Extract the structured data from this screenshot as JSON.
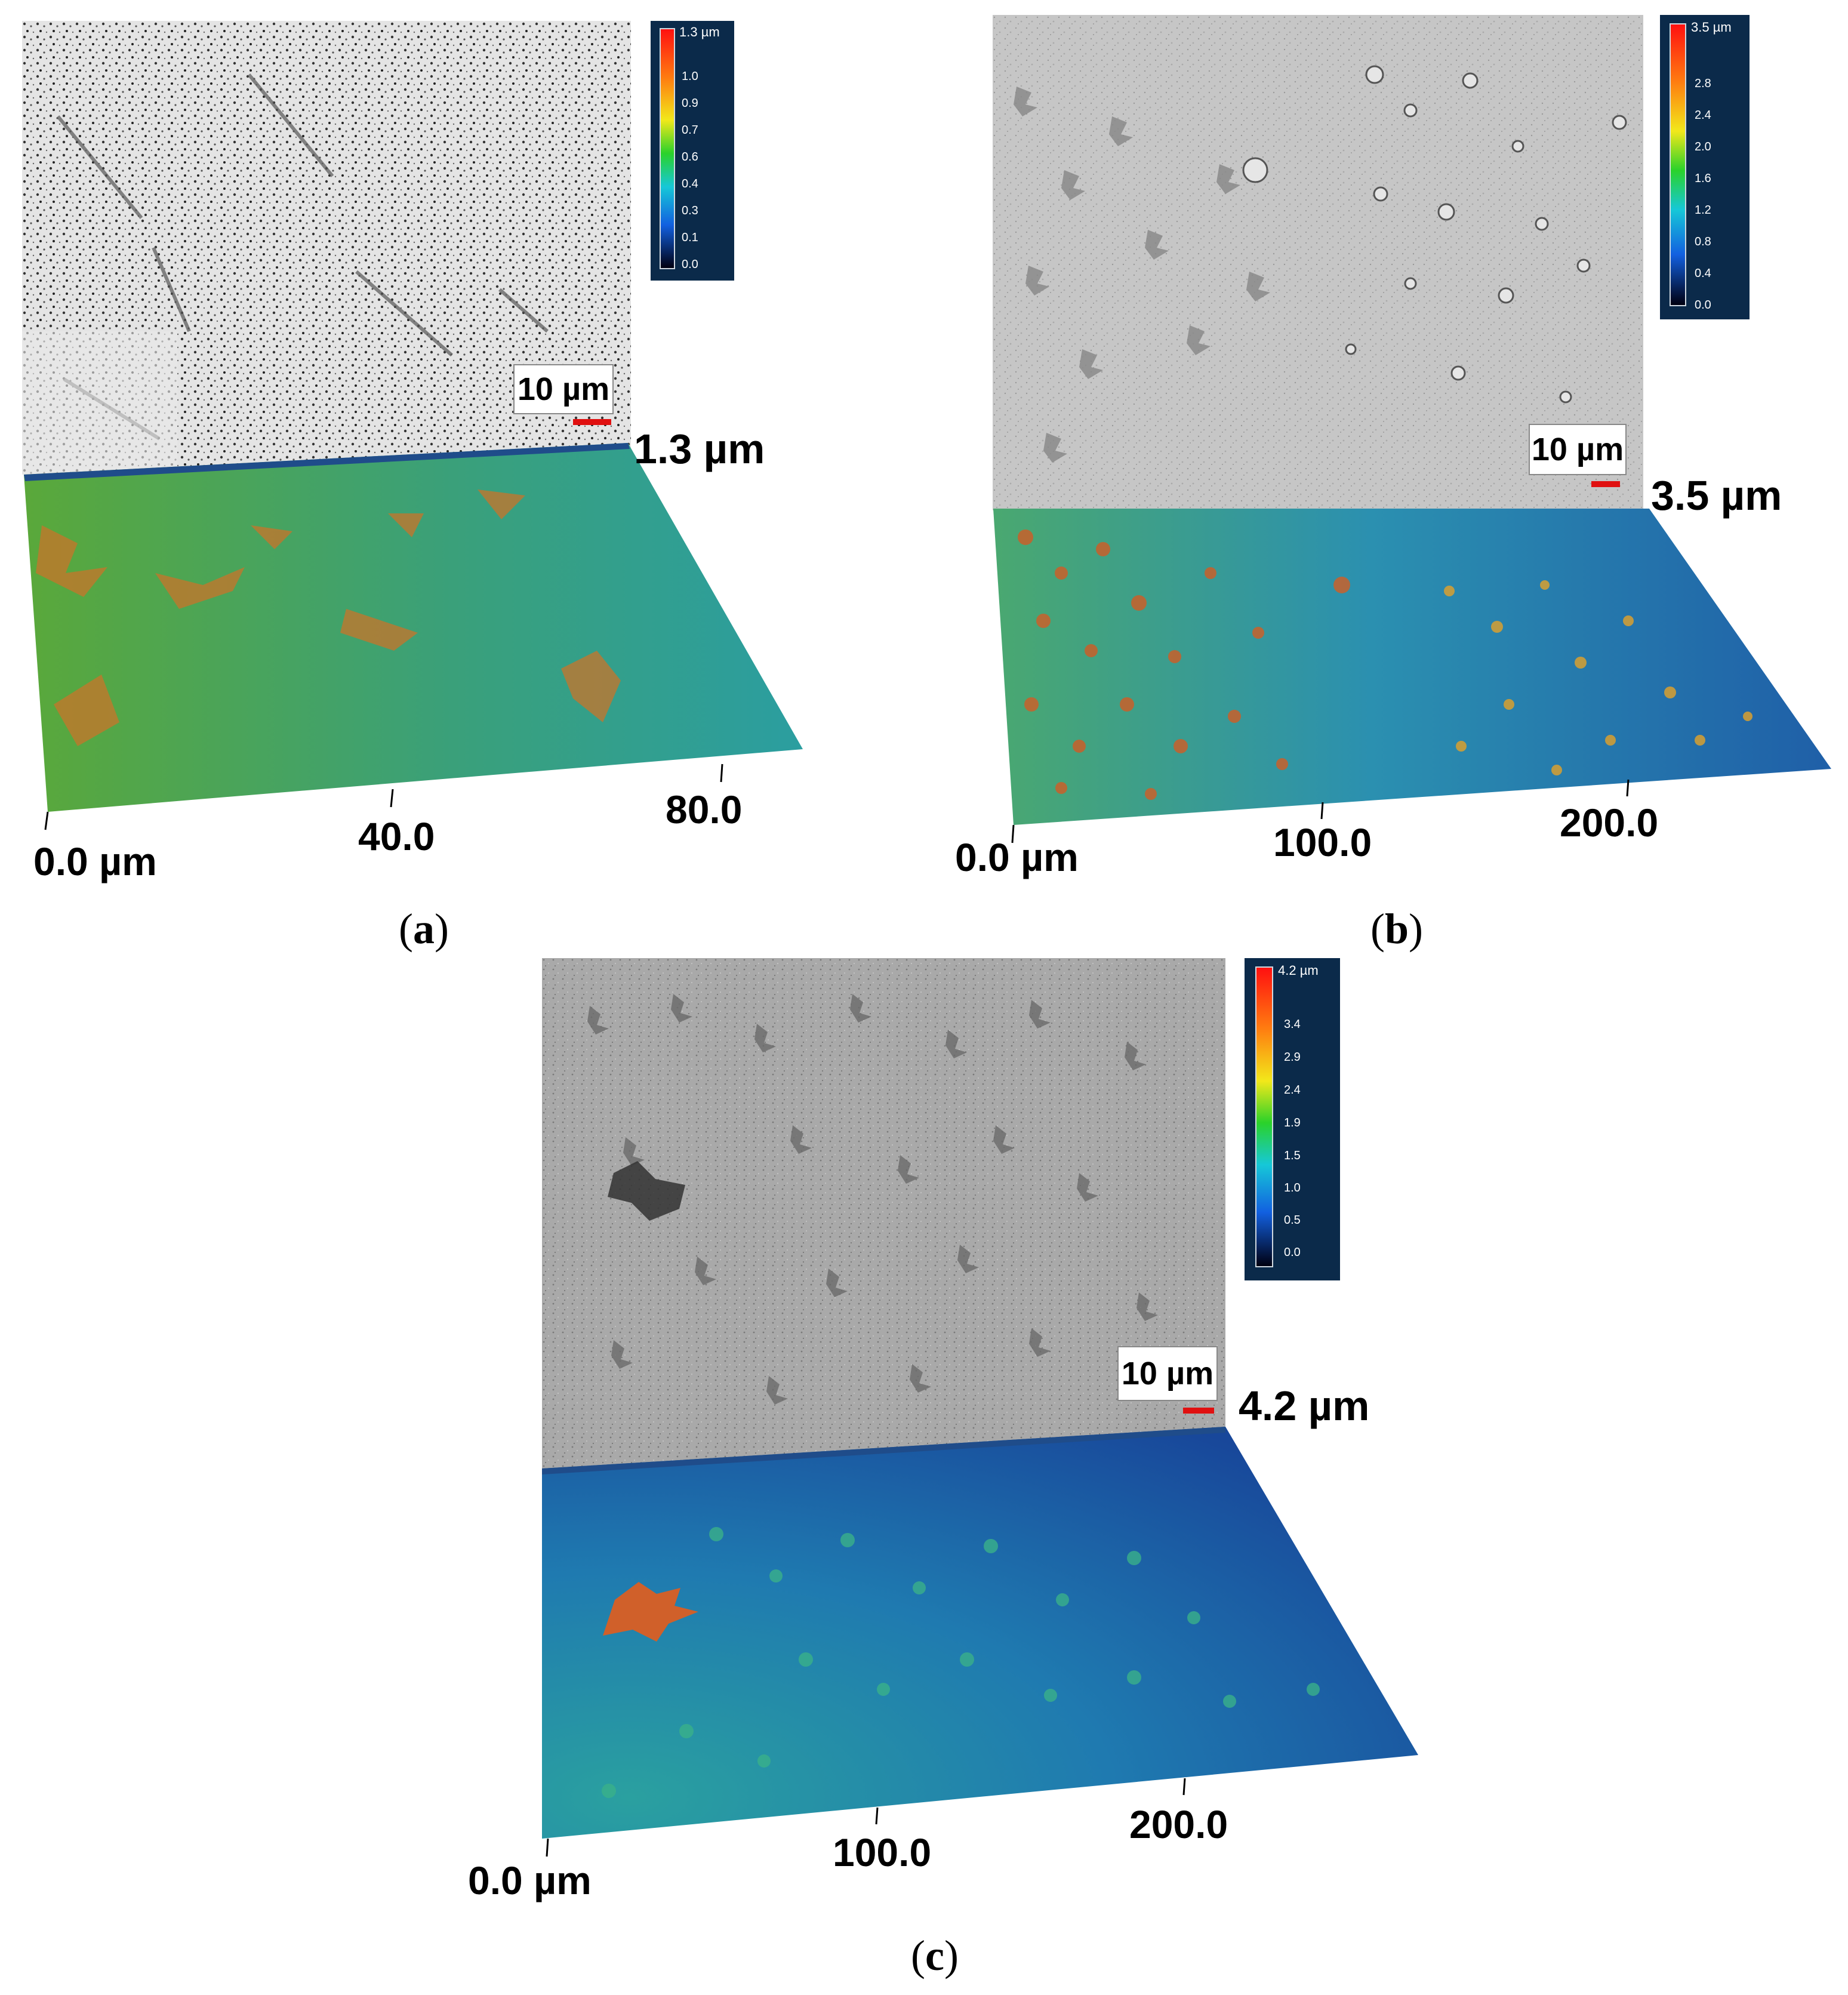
{
  "panels": [
    {
      "id": "a",
      "caption_letter": "a",
      "colorbar": {
        "max_label": "1.3 µm",
        "ticks": [
          "1.0",
          "0.9",
          "0.7",
          "0.6",
          "0.4",
          "0.3",
          "0.1",
          "0.0"
        ]
      },
      "scale_bar_label": "10 µm",
      "height_label": "1.3 µm",
      "axis_labels": [
        "0.0 µm",
        "40.0",
        "80.0"
      ]
    },
    {
      "id": "b",
      "caption_letter": "b",
      "colorbar": {
        "max_label": "3.5 µm",
        "ticks": [
          "2.8",
          "2.4",
          "2.0",
          "1.6",
          "1.2",
          "0.8",
          "0.4",
          "0.0"
        ]
      },
      "scale_bar_label": "10 µm",
      "height_label": "3.5 µm",
      "axis_labels": [
        "0.0 µm",
        "100.0",
        "200.0"
      ]
    },
    {
      "id": "c",
      "caption_letter": "c",
      "colorbar": {
        "max_label": "4.2 µm",
        "ticks": [
          "3.4",
          "2.9",
          "2.4",
          "1.9",
          "1.5",
          "1.0",
          "0.5",
          "0.0"
        ]
      },
      "scale_bar_label": "10 µm",
      "height_label": "4.2 µm",
      "axis_labels": [
        "0.0 µm",
        "100.0",
        "200.0"
      ]
    }
  ]
}
